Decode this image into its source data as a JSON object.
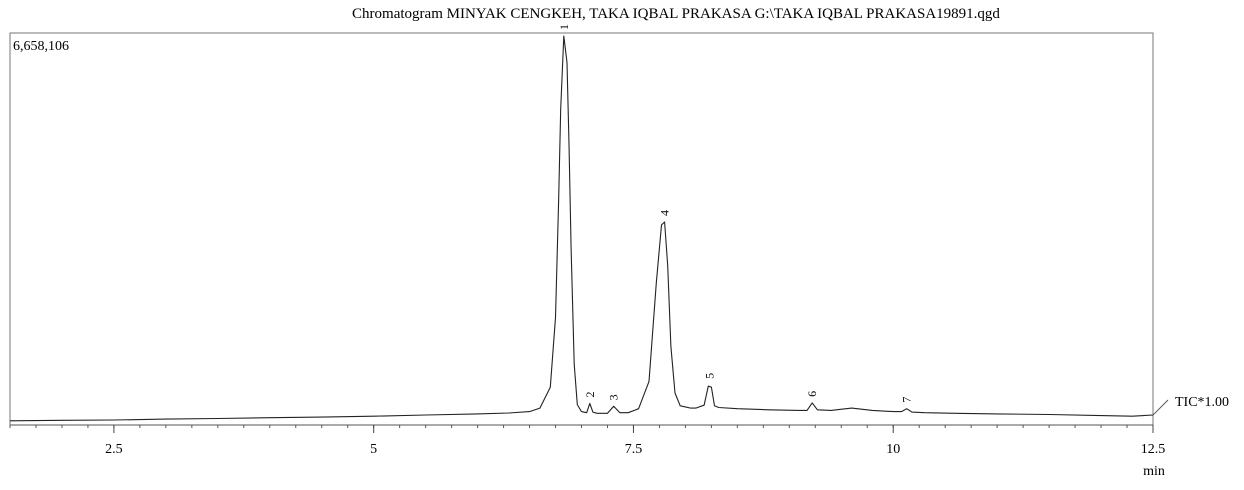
{
  "chart_data": {
    "type": "line",
    "title": "Chromatogram MINYAK CENGKEH, TAKA IQBAL PRAKASA G:\\TAKA IQBAL PRAKASA19891.qgd",
    "y_max_label": "6,658,106",
    "trace_label": "TIC*1.00",
    "xlabel": "min",
    "ylabel": "",
    "xlim": [
      1.5,
      12.5
    ],
    "ylim": [
      0,
      6658106
    ],
    "x_ticks": [
      2.5,
      5,
      7.5,
      10,
      12.5
    ],
    "x_tick_labels": [
      "2.5",
      "5",
      "7.5",
      "10",
      "12.5"
    ],
    "grid": false,
    "series": [
      {
        "x": [
          1.5,
          2.0,
          2.5,
          3.0,
          3.5,
          4.0,
          4.5,
          5.0,
          5.5,
          6.0,
          6.3,
          6.5,
          6.6,
          6.7,
          6.75,
          6.78,
          6.8,
          6.83,
          6.86,
          6.88,
          6.9,
          6.93,
          6.96,
          7.0,
          7.05,
          7.08,
          7.11,
          7.15,
          7.25,
          7.31,
          7.37,
          7.45,
          7.55,
          7.65,
          7.72,
          7.77,
          7.8,
          7.83,
          7.86,
          7.9,
          7.95,
          8.0,
          8.05,
          8.1,
          8.18,
          8.22,
          8.25,
          8.28,
          8.32,
          8.5,
          8.8,
          9.1,
          9.17,
          9.22,
          9.27,
          9.4,
          9.6,
          9.8,
          10.0,
          10.08,
          10.13,
          10.18,
          10.3,
          10.6,
          11.0,
          11.5,
          12.0,
          12.3,
          12.5
        ],
        "y": [
          20000,
          30000,
          35000,
          50000,
          60000,
          75000,
          85000,
          100000,
          120000,
          140000,
          155000,
          180000,
          240000,
          600000,
          1800000,
          3800000,
          5400000,
          6658106,
          6200000,
          4800000,
          3000000,
          1000000,
          300000,
          180000,
          160000,
          320000,
          170000,
          150000,
          150000,
          270000,
          160000,
          160000,
          230000,
          700000,
          2400000,
          3400000,
          3450000,
          2700000,
          1300000,
          500000,
          280000,
          260000,
          240000,
          240000,
          290000,
          620000,
          600000,
          280000,
          250000,
          230000,
          210000,
          200000,
          200000,
          330000,
          210000,
          200000,
          240000,
          200000,
          180000,
          180000,
          230000,
          170000,
          160000,
          150000,
          140000,
          130000,
          110000,
          100000,
          120000
        ]
      }
    ],
    "peaks": [
      {
        "label": "1",
        "x": 6.83,
        "y": 6658106
      },
      {
        "label": "2",
        "x": 7.08,
        "y": 320000
      },
      {
        "label": "3",
        "x": 7.31,
        "y": 270000
      },
      {
        "label": "4",
        "x": 7.8,
        "y": 3450000
      },
      {
        "label": "5",
        "x": 8.23,
        "y": 640000
      },
      {
        "label": "6",
        "x": 9.22,
        "y": 330000
      },
      {
        "label": "7",
        "x": 10.13,
        "y": 230000
      }
    ]
  }
}
